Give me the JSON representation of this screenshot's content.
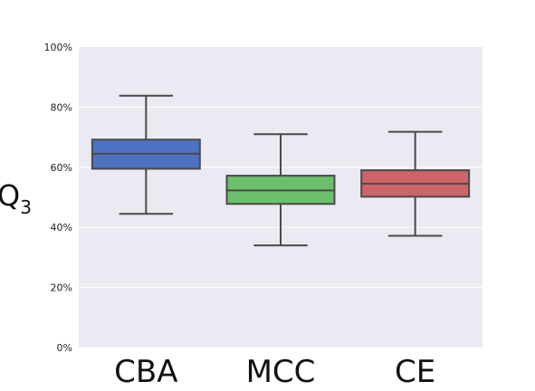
{
  "chart_data": {
    "type": "box",
    "title": "",
    "xlabel": "",
    "ylabel": "Q",
    "ylabel_subscript": "3",
    "categories": [
      "CBA",
      "MCC",
      "CE"
    ],
    "ylim": [
      0,
      100
    ],
    "yticks": [
      0,
      20,
      40,
      60,
      80,
      100
    ],
    "ytick_labels": [
      "0%",
      "20%",
      "40%",
      "60%",
      "80%",
      "100%"
    ],
    "grid": true,
    "boxes": [
      {
        "label": "CBA",
        "whisker_low": 44.5,
        "q1": 59.5,
        "median": 64.5,
        "q3": 69.2,
        "whisker_high": 83.8,
        "color": "#4c72c4"
      },
      {
        "label": "MCC",
        "whisker_low": 34.0,
        "q1": 47.8,
        "median": 52.3,
        "q3": 57.2,
        "whisker_high": 71.0,
        "color": "#6cc06c"
      },
      {
        "label": "CE",
        "whisker_low": 37.2,
        "q1": 50.2,
        "median": 54.5,
        "q3": 59.0,
        "whisker_high": 71.8,
        "color": "#cc6468"
      }
    ],
    "colors": {
      "plot_background": "#eaeaf2",
      "grid": "#ffffff",
      "line": "#4a4a4a"
    }
  }
}
